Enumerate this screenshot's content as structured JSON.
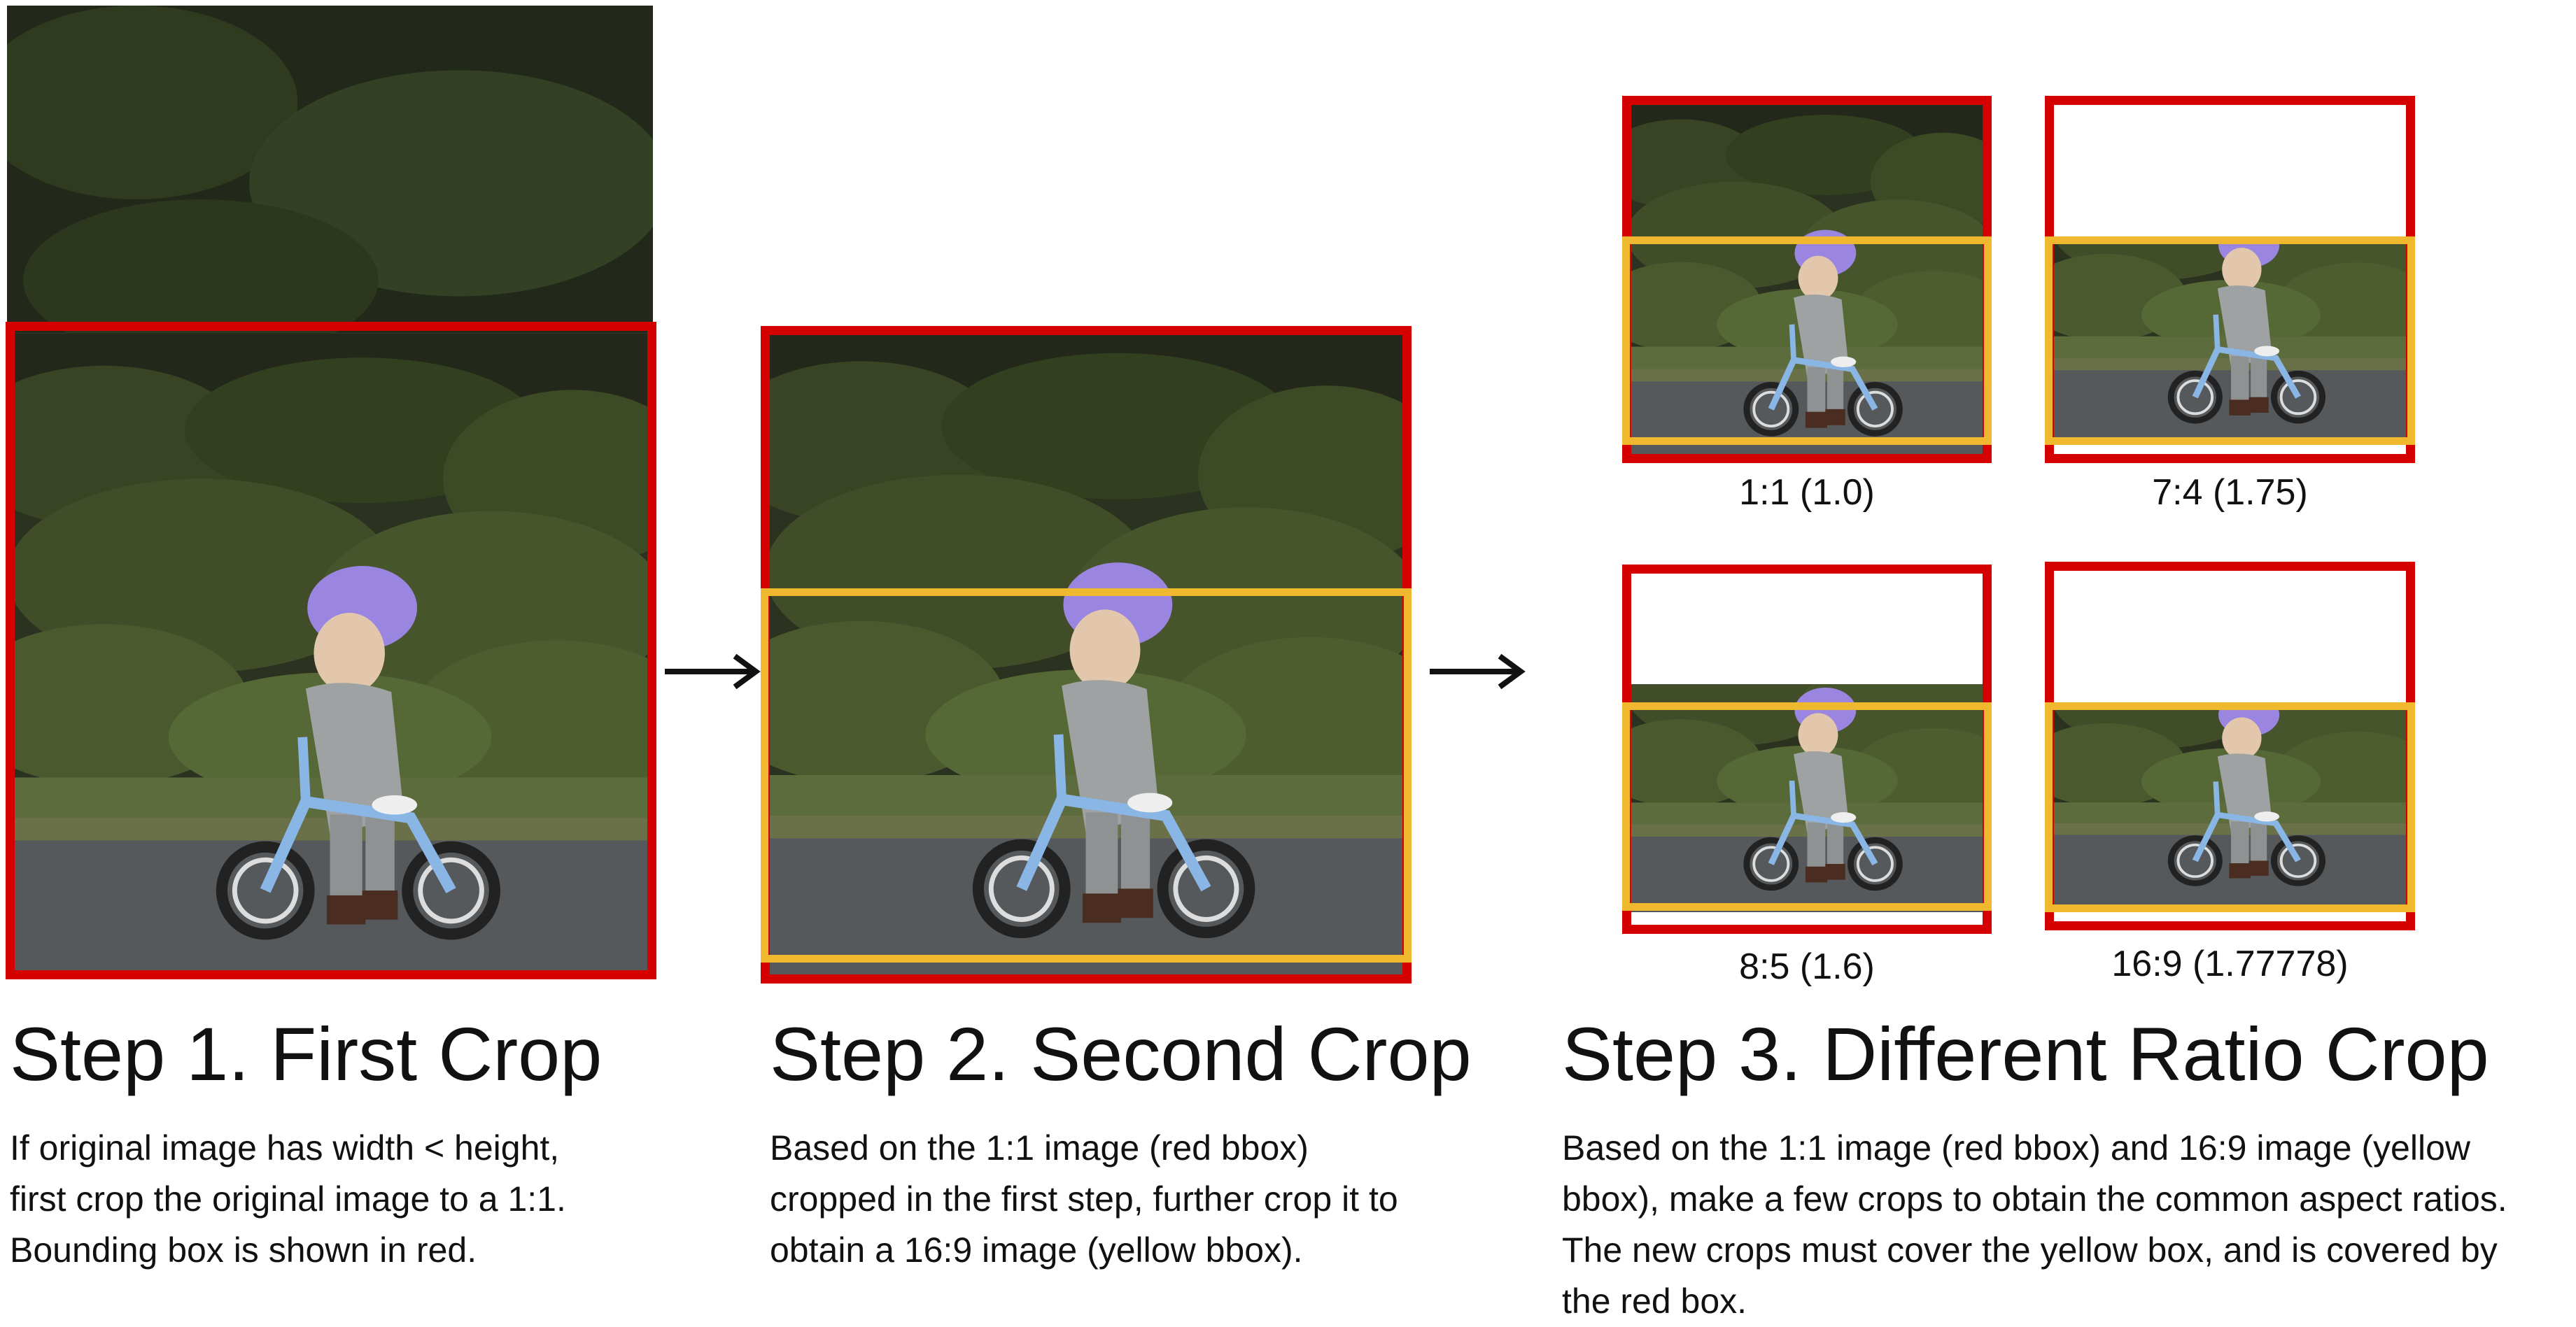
{
  "step1": {
    "title": "Step 1. First Crop",
    "desc": [
      "If original image has width < height,",
      "first crop the original image to a 1:1.",
      "Bounding box is shown in red."
    ]
  },
  "step2": {
    "title": "Step 2. Second Crop",
    "desc": [
      "Based on the 1:1 image (red bbox)",
      "cropped in the first step, further crop it to",
      "obtain a 16:9 image (yellow bbox)."
    ]
  },
  "step3": {
    "title": "Step 3. Different Ratio Crop",
    "desc": [
      "Based on the 1:1 image (red bbox) and 16:9 image (yellow",
      "bbox), make a few crops to obtain the common aspect ratios.",
      "The new crops must cover the yellow box, and is covered by",
      "the red box."
    ],
    "crops": [
      {
        "label": "1:1 (1.0)"
      },
      {
        "label": "7:4 (1.75)"
      },
      {
        "label": "8:5 (1.6)"
      },
      {
        "label": "16:9 (1.77778)"
      }
    ]
  },
  "colors": {
    "red_bbox": "#d50000",
    "yellow_bbox": "#f0b82f",
    "arrow": "#111111"
  },
  "icons": [
    "right-arrow-icon",
    "photo-child-on-balance-bike"
  ]
}
